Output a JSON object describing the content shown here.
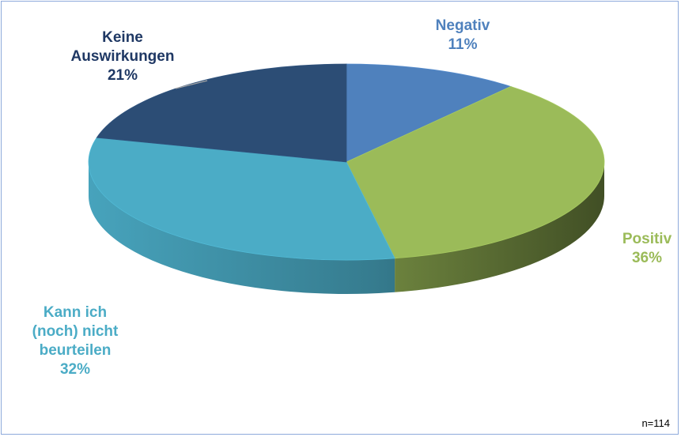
{
  "chart_data": {
    "type": "pie",
    "style": "3d",
    "categories": [
      "Negativ",
      "Positiv",
      "Kann ich (noch) nicht beurteilen",
      "Keine Auswirkungen"
    ],
    "values": [
      11,
      36,
      32,
      21
    ],
    "unit": "%",
    "title": "",
    "slices": [
      {
        "label_lines": [
          "Negativ"
        ],
        "pct": "11%",
        "value": 11,
        "color": "#4f81bd"
      },
      {
        "label_lines": [
          "Positiv"
        ],
        "pct": "36%",
        "value": 36,
        "color": "#9bbb59"
      },
      {
        "label_lines": [
          "Kann ich",
          "(noch) nicht",
          "beurteilen"
        ],
        "pct": "32%",
        "value": 32,
        "color": "#4bacc6"
      },
      {
        "label_lines": [
          "Keine",
          "Auswirkungen"
        ],
        "pct": "21%",
        "value": 21,
        "color": "#2c4d75"
      }
    ],
    "label_colors": [
      "#4f81bd",
      "#9bbb59",
      "#4bacc6",
      "#1f3864"
    ]
  },
  "footnote": "n=114"
}
